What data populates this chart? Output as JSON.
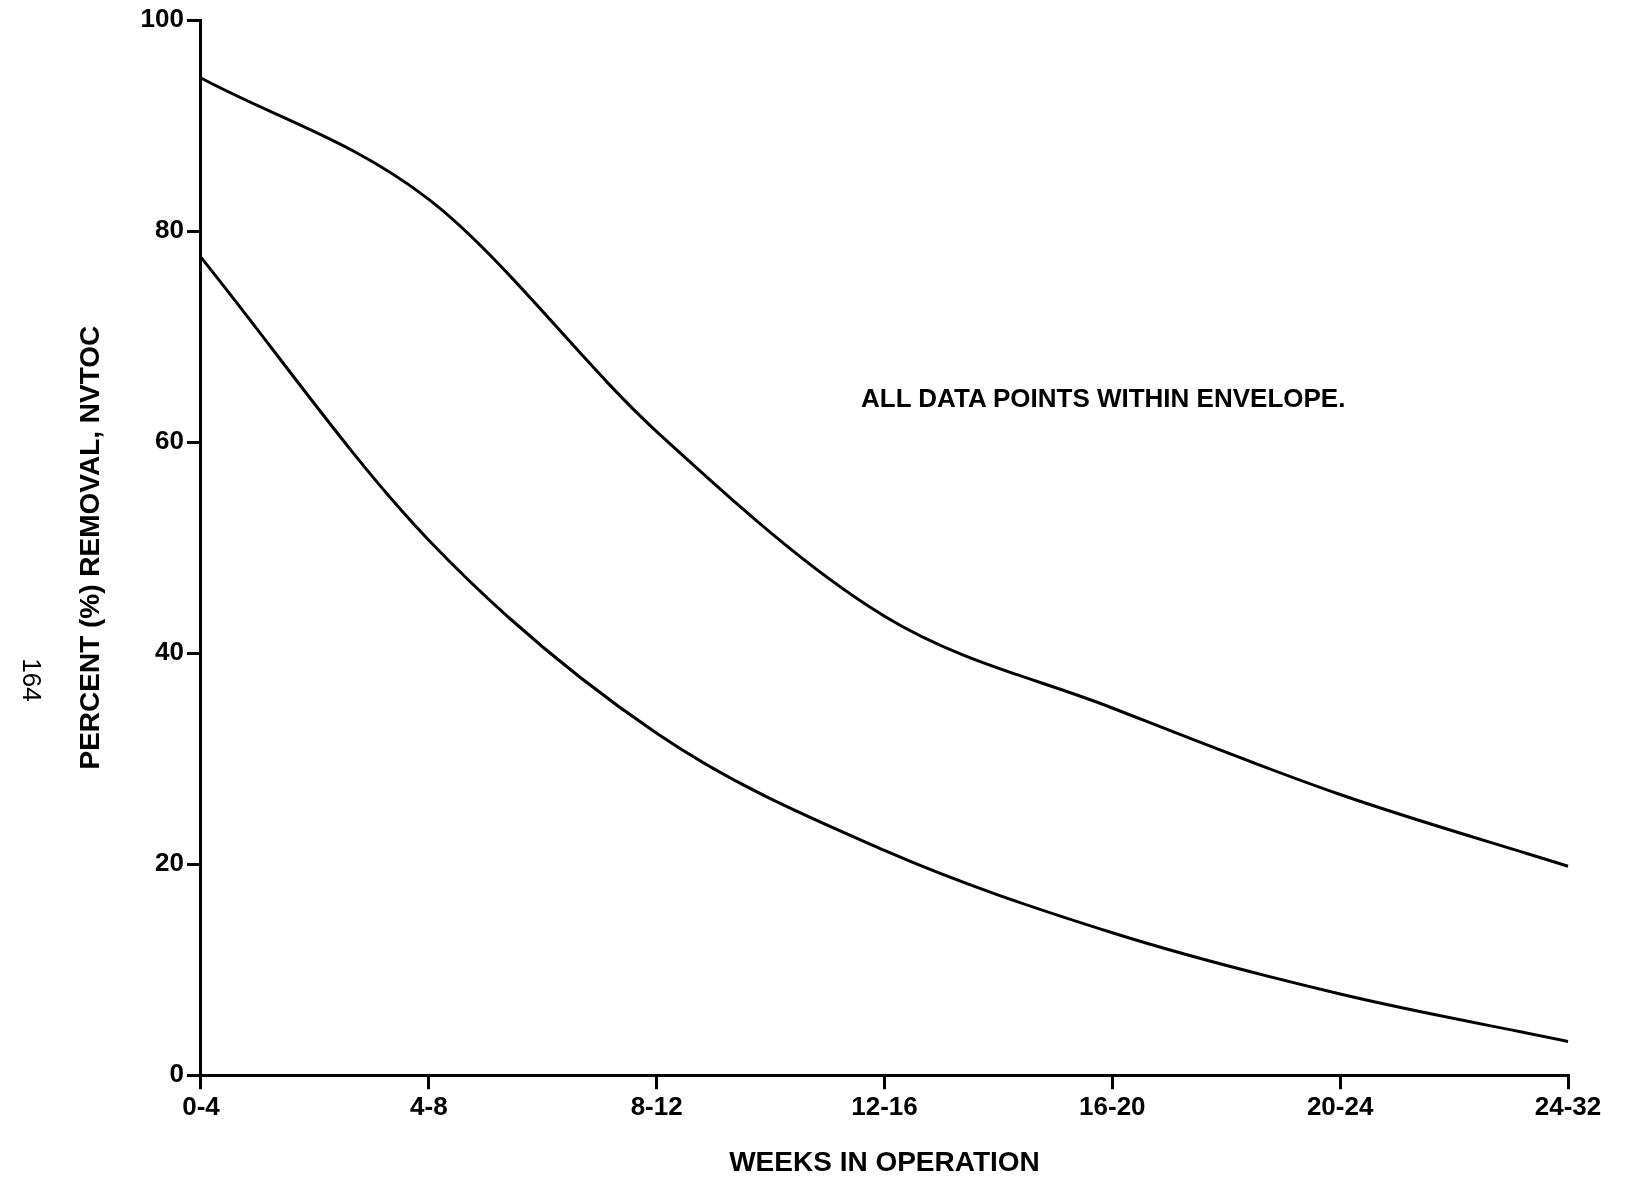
{
  "chart_data": {
    "type": "line",
    "xlabel": "WEEKS IN OPERATION",
    "ylabel": "PERCENT (%) REMOVAL, NVTOC",
    "categories": [
      "0-4",
      "4-8",
      "8-12",
      "12-16",
      "16-20",
      "20-24",
      "24-32"
    ],
    "series": [
      {
        "type": "line",
        "color": "#000000",
        "values": [
          94.5,
          83,
          61,
          43.5,
          34.8,
          26.6,
          19.8
        ]
      },
      {
        "type": "line",
        "color": "#000000",
        "values": [
          77.5,
          50.7,
          32.4,
          21.3,
          13.5,
          7.7,
          3.2
        ]
      }
    ],
    "ylim": [
      0,
      100
    ],
    "yticks": [
      0,
      20,
      40,
      60,
      80,
      100
    ],
    "grid": false,
    "legend": false,
    "marker": "none",
    "line_style": "solid",
    "annotations": [
      "ALL DATA POINTS WITHIN ENVELOPE.",
      "164"
    ]
  }
}
